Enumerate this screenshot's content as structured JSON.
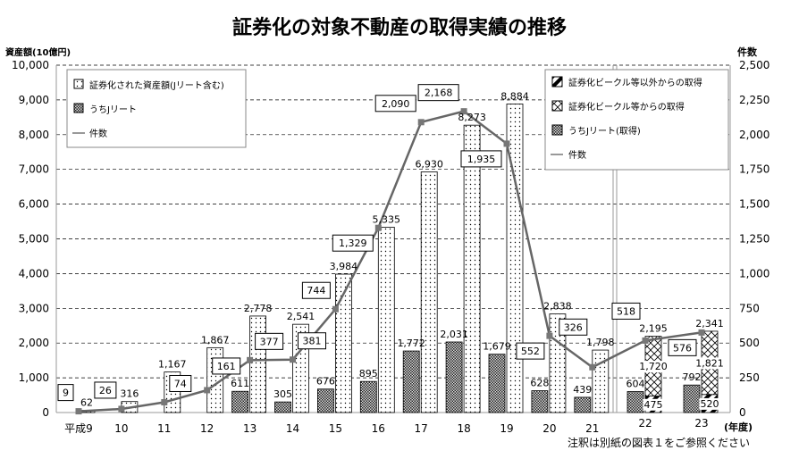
{
  "chart_data": {
    "type": "bar",
    "title": "証券化の対象不動産の取得実績の推移",
    "ylabel": "資産額(10億円)",
    "y2label": "件数",
    "xlabel": "(年度)",
    "note": "注釈は別紙の図表１をご参照ください",
    "ylim": [
      0,
      10000
    ],
    "y2lim": [
      0,
      2500
    ],
    "yticks": [
      "0",
      "1,000",
      "2,000",
      "3,000",
      "4,000",
      "5,000",
      "6,000",
      "7,000",
      "8,000",
      "9,000",
      "10,000"
    ],
    "y2ticks": [
      "0",
      "250",
      "500",
      "750",
      "1,000",
      "1,250",
      "1,500",
      "1,750",
      "2,000",
      "2,250",
      "2,500"
    ],
    "categories": [
      "平成9",
      "10",
      "11",
      "12",
      "13",
      "14",
      "15",
      "16",
      "17",
      "18",
      "19",
      "20",
      "21",
      "22",
      "23"
    ],
    "series": [
      {
        "name": "証券化された資産額(Jリート含む)",
        "values": [
          62,
          316,
          1167,
          1867,
          2778,
          2541,
          3984,
          5335,
          6930,
          8273,
          8884,
          2838,
          1798,
          null,
          null
        ],
        "labels": [
          "62",
          "316",
          "1,167",
          "1,867",
          "2,778",
          "2,541",
          "3,984",
          "5,335",
          "6,930",
          "8,273",
          "8,884",
          "2,838",
          "1,798",
          "",
          ""
        ]
      },
      {
        "name": "うちJリート",
        "values": [
          null,
          null,
          null,
          null,
          611,
          305,
          676,
          895,
          1772,
          2031,
          1679,
          628,
          439,
          null,
          null
        ],
        "labels": [
          "",
          "",
          "",
          "",
          "611",
          "305",
          "676",
          "895",
          "1,772",
          "2,031",
          "1,679",
          "628",
          "439",
          "",
          ""
        ]
      },
      {
        "name": "件数",
        "axis": "right",
        "values": [
          9,
          26,
          74,
          161,
          377,
          381,
          744,
          1329,
          2090,
          2168,
          1935,
          552,
          326,
          518,
          576
        ],
        "labels": [
          "9",
          "26",
          "74",
          "161",
          "377",
          "381",
          "744",
          "1,329",
          "2,090",
          "2,168",
          "1,935",
          "552",
          "326",
          "518",
          "576"
        ]
      },
      {
        "name": "証券化ビークル等以外からの取得",
        "values": [
          null,
          null,
          null,
          null,
          null,
          null,
          null,
          null,
          null,
          null,
          null,
          null,
          null,
          475,
          520
        ],
        "labels": [
          "",
          "",
          "",
          "",
          "",
          "",
          "",
          "",
          "",
          "",
          "",
          "",
          "",
          "475",
          "520"
        ]
      },
      {
        "name": "証券化ビークル等からの取得",
        "values": [
          null,
          null,
          null,
          null,
          null,
          null,
          null,
          null,
          null,
          null,
          null,
          null,
          null,
          1720,
          1821
        ],
        "labels": [
          "",
          "",
          "",
          "",
          "",
          "",
          "",
          "",
          "",
          "",
          "",
          "",
          "",
          "1,720",
          "1,821"
        ]
      },
      {
        "name": "うちJリート(取得)",
        "values": [
          null,
          null,
          null,
          null,
          null,
          null,
          null,
          null,
          null,
          null,
          null,
          null,
          null,
          604,
          792
        ],
        "labels": [
          "",
          "",
          "",
          "",
          "",
          "",
          "",
          "",
          "",
          "",
          "",
          "",
          "",
          "604",
          "792"
        ]
      }
    ],
    "stack_totals": {
      "labels": [
        "",
        "",
        "",
        "",
        "",
        "",
        "",
        "",
        "",
        "",
        "",
        "",
        "",
        "2,195",
        "2,341"
      ]
    },
    "legend_left": [
      "証券化された資産額(Jリート含む)",
      "うちJリート",
      "件数"
    ],
    "legend_right": [
      "証券化ビークル等以外からの取得",
      "証券化ビークル等からの取得",
      "うちJリート(取得)",
      "件数"
    ],
    "grid": true,
    "colors": {
      "line": "#666666",
      "axis": "#999999"
    }
  }
}
